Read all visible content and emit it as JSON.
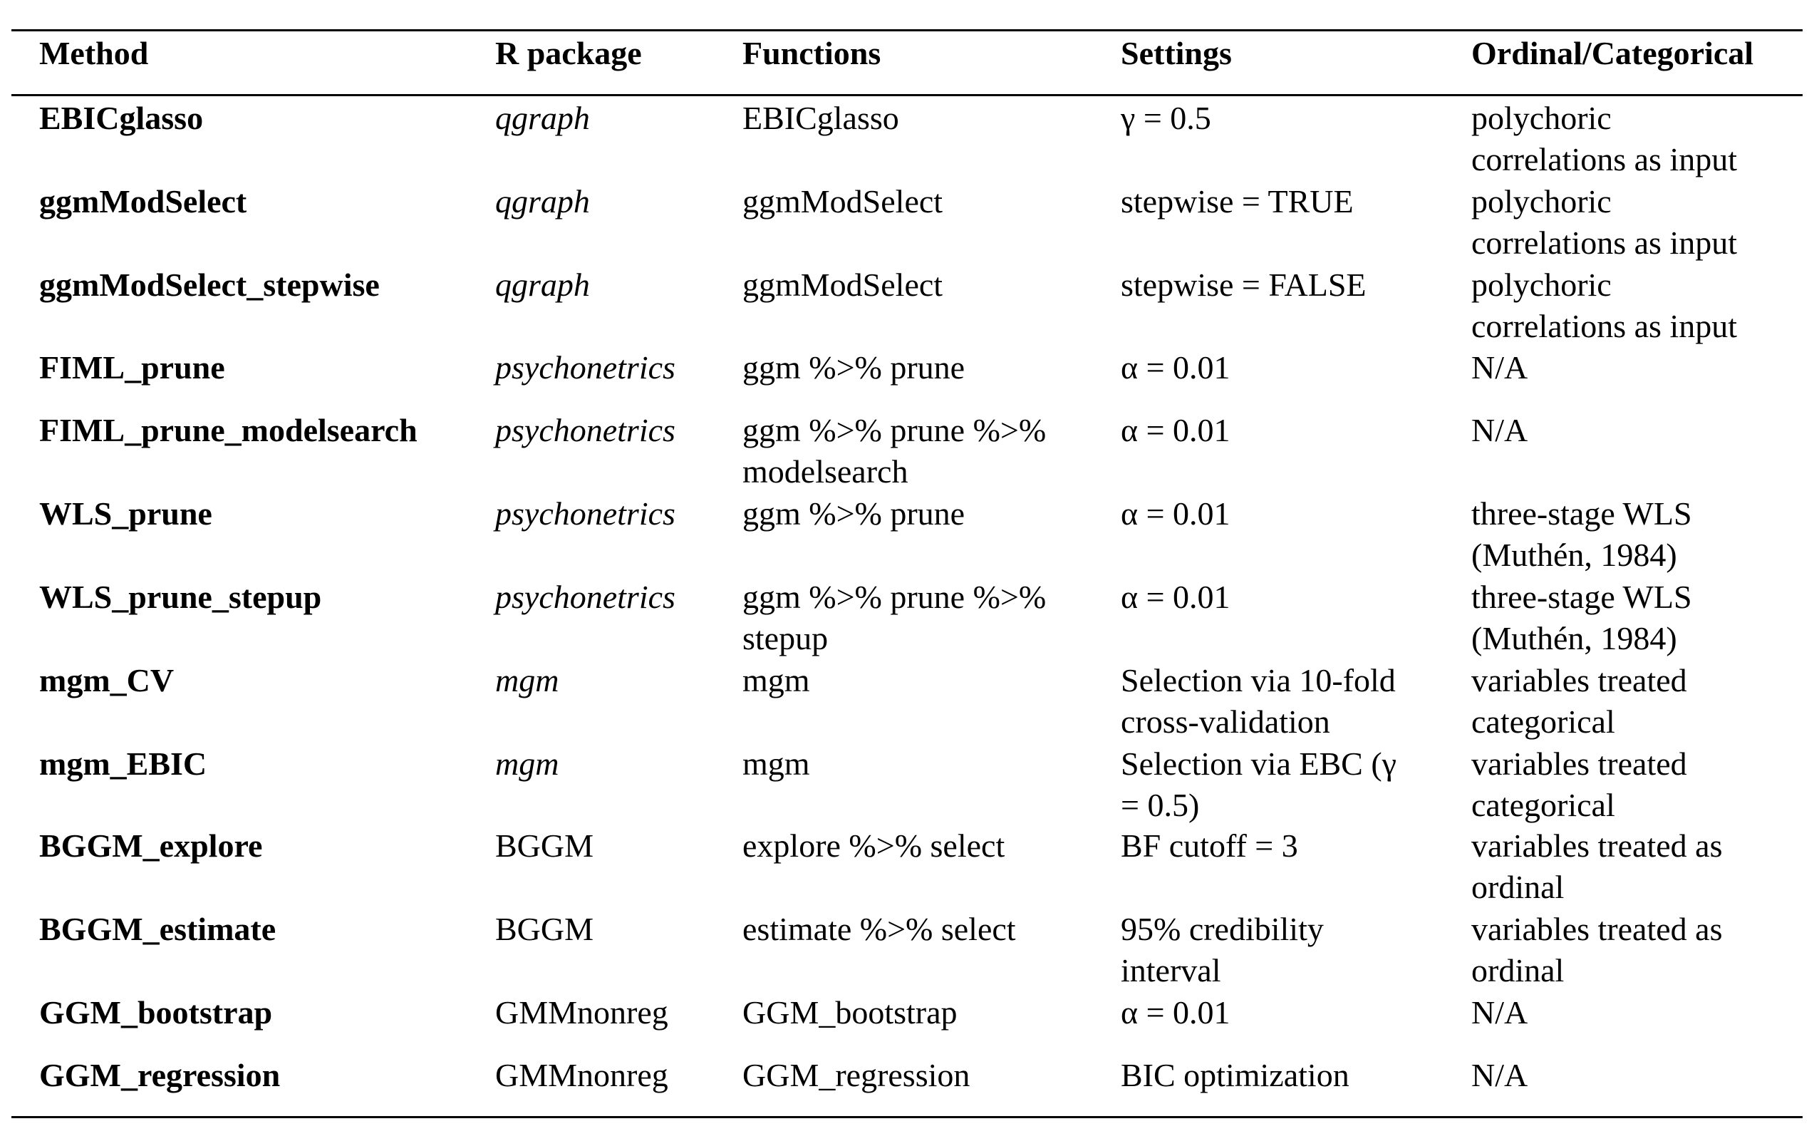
{
  "headers": [
    "Method",
    "R package",
    "Functions",
    "Settings",
    "Ordinal/Categorical"
  ],
  "rows": [
    {
      "method": "EBICglasso",
      "package": "qgraph",
      "package_italic": true,
      "functions": "EBICglasso",
      "settings": "γ = 0.5",
      "ordinal": "polychoric\ncorrelations as input"
    },
    {
      "method": "ggmModSelect",
      "package": "qgraph",
      "package_italic": true,
      "functions": "ggmModSelect",
      "settings": "stepwise = TRUE",
      "ordinal": "polychoric\ncorrelations as input"
    },
    {
      "method": "ggmModSelect_stepwise",
      "package": "qgraph",
      "package_italic": true,
      "functions": "ggmModSelect",
      "settings": "stepwise = FALSE",
      "ordinal": "polychoric\ncorrelations as input"
    },
    {
      "method": "FIML_prune",
      "package": "psychonetrics",
      "package_italic": true,
      "functions": "ggm %>% prune",
      "settings": "α = 0.01",
      "ordinal": "N/A"
    },
    {
      "method": "FIML_prune_modelsearch",
      "package": "psychonetrics",
      "package_italic": true,
      "functions": "ggm %>% prune %>%\nmodelsearch",
      "settings": "α = 0.01",
      "ordinal": "N/A"
    },
    {
      "method": "WLS_prune",
      "package": "psychonetrics",
      "package_italic": true,
      "functions": "ggm %>% prune",
      "settings": "α = 0.01",
      "ordinal": "three-stage WLS\n(Muthén, 1984)"
    },
    {
      "method": "WLS_prune_stepup",
      "package": "psychonetrics",
      "package_italic": true,
      "functions": "ggm %>% prune %>%\nstepup",
      "settings": "α = 0.01",
      "ordinal": "three-stage WLS\n(Muthén, 1984)"
    },
    {
      "method": "mgm_CV",
      "package": "mgm",
      "package_italic": true,
      "functions": "mgm",
      "settings": "Selection via 10-fold\ncross-validation",
      "ordinal": "variables treated\ncategorical"
    },
    {
      "method": "mgm_EBIC",
      "package": "mgm",
      "package_italic": true,
      "functions": "mgm",
      "settings": "Selection via EBC (γ\n= 0.5)",
      "ordinal": "variables treated\ncategorical"
    },
    {
      "method": "BGGM_explore",
      "package": "BGGM",
      "package_italic": false,
      "functions": "explore %>% select",
      "settings": "BF cutoff = 3",
      "ordinal": "variables treated as\nordinal"
    },
    {
      "method": "BGGM_estimate",
      "package": "BGGM",
      "package_italic": false,
      "functions": "estimate %>% select",
      "settings": "95% credibility\ninterval",
      "ordinal": "variables treated as\nordinal"
    },
    {
      "method": "GGM_bootstrap",
      "package": "GMMnonreg",
      "package_italic": false,
      "functions": "GGM_bootstrap",
      "settings": "α = 0.01",
      "ordinal": "N/A"
    },
    {
      "method": "GGM_regression",
      "package": "GMMnonreg",
      "package_italic": false,
      "functions": "GGM_regression",
      "settings": "BIC optimization",
      "ordinal": "N/A"
    }
  ]
}
